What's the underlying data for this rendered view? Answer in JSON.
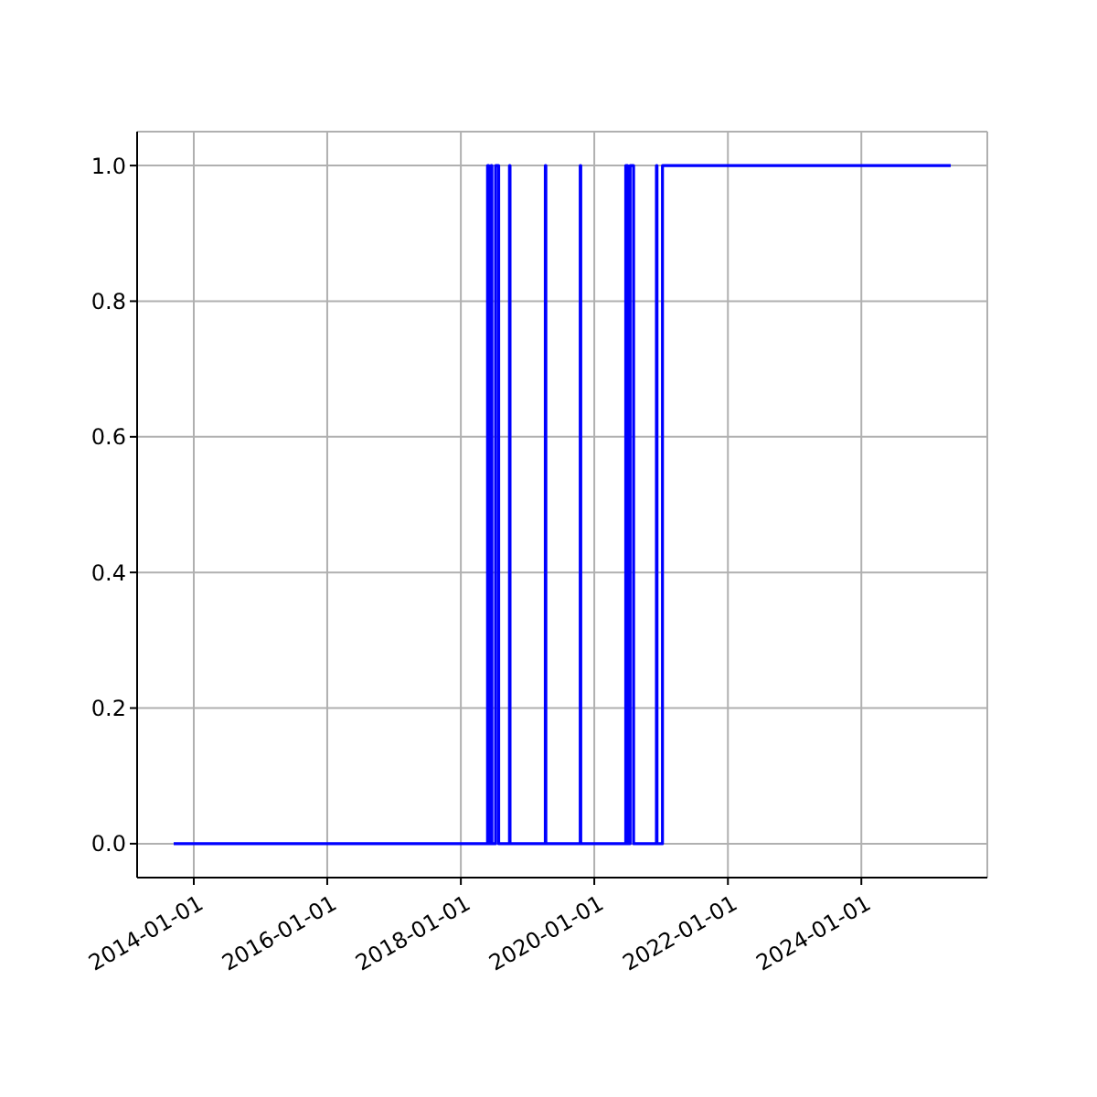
{
  "chart_data": {
    "type": "step",
    "x": [
      "2013-09-13",
      "2018-05-27",
      "2018-06-03",
      "2018-06-15",
      "2018-06-20",
      "2018-07-10",
      "2018-07-27",
      "2018-09-24",
      "2018-09-27",
      "2019-04-08",
      "2019-04-11",
      "2019-10-16",
      "2019-10-19",
      "2020-06-21",
      "2020-07-01",
      "2020-07-15",
      "2020-08-03",
      "2020-12-06",
      "2020-12-09",
      "2021-01-08",
      "2025-05-04"
    ],
    "values": [
      0,
      1,
      0,
      1,
      0,
      1,
      0,
      1,
      0,
      1,
      0,
      1,
      0,
      1,
      0,
      1,
      0,
      1,
      0,
      1,
      1
    ],
    "color": "#0000ff",
    "xlim": [
      "2013-02-25",
      "2025-11-20"
    ],
    "xticks": [
      "2014-01-01",
      "2016-01-01",
      "2018-01-01",
      "2020-01-01",
      "2022-01-01",
      "2024-01-01"
    ],
    "ylim": [
      -0.05,
      1.05
    ],
    "yticks": [
      {
        "value": 0,
        "label": "0.0"
      },
      {
        "value": 0.2,
        "label": "0.2"
      },
      {
        "value": 0.4,
        "label": "0.4"
      },
      {
        "value": 0.6,
        "label": "0.6"
      },
      {
        "value": 0.8,
        "label": "0.8"
      },
      {
        "value": 1,
        "label": "1.0"
      }
    ],
    "grid": true
  }
}
